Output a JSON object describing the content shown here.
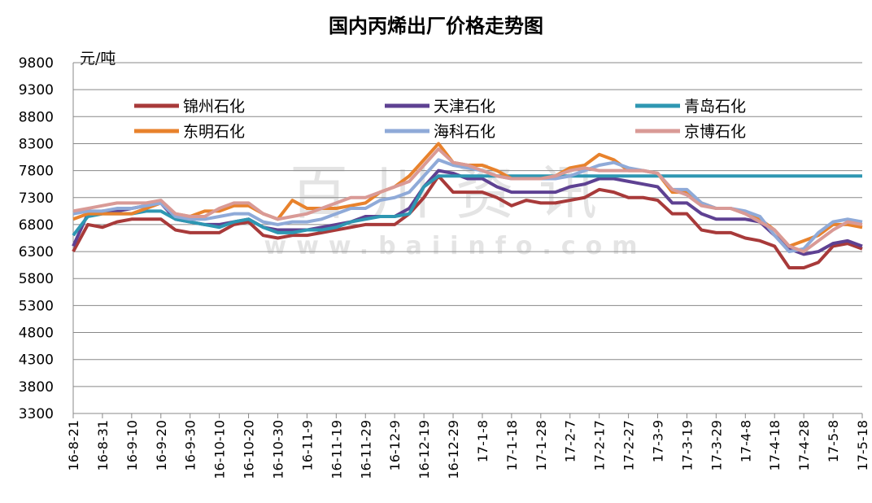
{
  "chart_data": {
    "type": "line",
    "title": "国内丙烯出厂价格走势图",
    "y_label": "元/吨",
    "watermark": [
      "百川资讯",
      "www.baiinfo.com"
    ],
    "categories": [
      "16-8-21",
      null,
      "16-8-31",
      null,
      "16-9-10",
      null,
      "16-9-20",
      null,
      "16-9-30",
      null,
      "16-10-10",
      null,
      "16-10-20",
      null,
      "16-10-30",
      null,
      "16-11-9",
      null,
      "16-11-19",
      null,
      "16-11-29",
      null,
      "16-12-9",
      null,
      "16-12-19",
      null,
      "16-12-29",
      null,
      "17-1-8",
      null,
      "17-1-18",
      null,
      "17-1-28",
      null,
      "17-2-7",
      null,
      "17-2-17",
      null,
      "17-2-27",
      null,
      "17-3-9",
      null,
      "17-3-19",
      null,
      "17-3-29",
      null,
      "17-4-8",
      null,
      "17-4-18",
      null,
      "17-4-28",
      null,
      "17-5-8",
      null,
      "17-5-18"
    ],
    "series": [
      {
        "name": "锦州石化",
        "color": "#a83a3a",
        "values": [
          6300,
          6800,
          6750,
          6850,
          6900,
          6900,
          6900,
          6700,
          6650,
          6650,
          6650,
          6800,
          6850,
          6600,
          6550,
          6600,
          6600,
          6650,
          6700,
          6750,
          6800,
          6800,
          6800,
          7000,
          7300,
          7700,
          7400,
          7400,
          7400,
          7300,
          7150,
          7250,
          7200,
          7200,
          7250,
          7300,
          7450,
          7400,
          7300,
          7300,
          7250,
          7000,
          7000,
          6700,
          6650,
          6650,
          6550,
          6500,
          6400,
          6000,
          6000,
          6100,
          6400,
          6450,
          6350
        ]
      },
      {
        "name": "天津石化",
        "color": "#5e4192",
        "values": [
          6400,
          7000,
          7050,
          7050,
          7100,
          7150,
          7200,
          6900,
          6850,
          6800,
          6800,
          6850,
          6900,
          6750,
          6700,
          6700,
          6700,
          6750,
          6800,
          6850,
          6950,
          6950,
          6950,
          7100,
          7500,
          7800,
          7750,
          7650,
          7650,
          7500,
          7400,
          7400,
          7400,
          7400,
          7500,
          7550,
          7650,
          7650,
          7600,
          7550,
          7500,
          7200,
          7200,
          7000,
          6900,
          6900,
          6900,
          6850,
          6600,
          6350,
          6250,
          6300,
          6450,
          6500,
          6400
        ]
      },
      {
        "name": "青岛石化",
        "color": "#2e97b2",
        "values": [
          6600,
          6950,
          7000,
          7000,
          7000,
          7050,
          7050,
          6900,
          6850,
          6800,
          6750,
          6850,
          6900,
          6750,
          6650,
          6650,
          6700,
          6700,
          6750,
          6850,
          6900,
          6950,
          6950,
          7000,
          7500,
          7700,
          7700,
          7700,
          7700,
          7700,
          7700,
          7700,
          7700,
          7700,
          7700,
          7700,
          7700,
          7700,
          7700,
          7700,
          7700,
          7700,
          7700,
          7700,
          7700,
          7700,
          7700,
          7700,
          7700,
          7700,
          7700,
          7700,
          7700,
          7700,
          7700
        ]
      },
      {
        "name": "东明石化",
        "color": "#e8822c",
        "values": [
          6900,
          7000,
          7000,
          7000,
          7000,
          7100,
          7200,
          7000,
          6950,
          7050,
          7050,
          7150,
          7150,
          7000,
          6900,
          7250,
          7100,
          7100,
          7100,
          7150,
          7200,
          7400,
          7500,
          7700,
          8000,
          8300,
          7950,
          7900,
          7900,
          7800,
          7650,
          7650,
          7650,
          7700,
          7850,
          7900,
          8100,
          8000,
          7800,
          7800,
          7750,
          7400,
          7400,
          7200,
          7100,
          7100,
          7000,
          6900,
          6700,
          6400,
          6500,
          6600,
          6800,
          6800,
          6750
        ]
      },
      {
        "name": "海科石化",
        "color": "#8faad8",
        "values": [
          7000,
          7050,
          7050,
          7100,
          7100,
          7150,
          7200,
          6950,
          6900,
          6900,
          6950,
          7000,
          7000,
          6850,
          6800,
          6850,
          6850,
          6900,
          7000,
          7100,
          7100,
          7250,
          7300,
          7400,
          7700,
          8000,
          7900,
          7850,
          7800,
          7700,
          7650,
          7650,
          7650,
          7650,
          7700,
          7800,
          7900,
          7950,
          7850,
          7800,
          7750,
          7450,
          7450,
          7200,
          7100,
          7100,
          7050,
          6950,
          6600,
          6300,
          6350,
          6650,
          6850,
          6900,
          6850
        ]
      },
      {
        "name": "京博石化",
        "color": "#d99a96",
        "values": [
          7050,
          7100,
          7150,
          7200,
          7200,
          7200,
          7250,
          7000,
          6950,
          6950,
          7100,
          7200,
          7200,
          7000,
          6900,
          6950,
          7000,
          7100,
          7200,
          7300,
          7300,
          7400,
          7500,
          7600,
          7900,
          8200,
          7950,
          7900,
          7800,
          7700,
          7650,
          7650,
          7650,
          7700,
          7800,
          7850,
          7800,
          7800,
          7800,
          7800,
          7750,
          7450,
          7350,
          7150,
          7100,
          7100,
          7000,
          6850,
          6700,
          6400,
          6300,
          6500,
          6700,
          6850,
          6800
        ]
      }
    ],
    "ylim": [
      3300,
      9800
    ],
    "yticks": [
      3300,
      3800,
      4300,
      4800,
      5300,
      5800,
      6300,
      6800,
      7300,
      7800,
      8300,
      8800,
      9300,
      9800
    ],
    "grid": true
  }
}
